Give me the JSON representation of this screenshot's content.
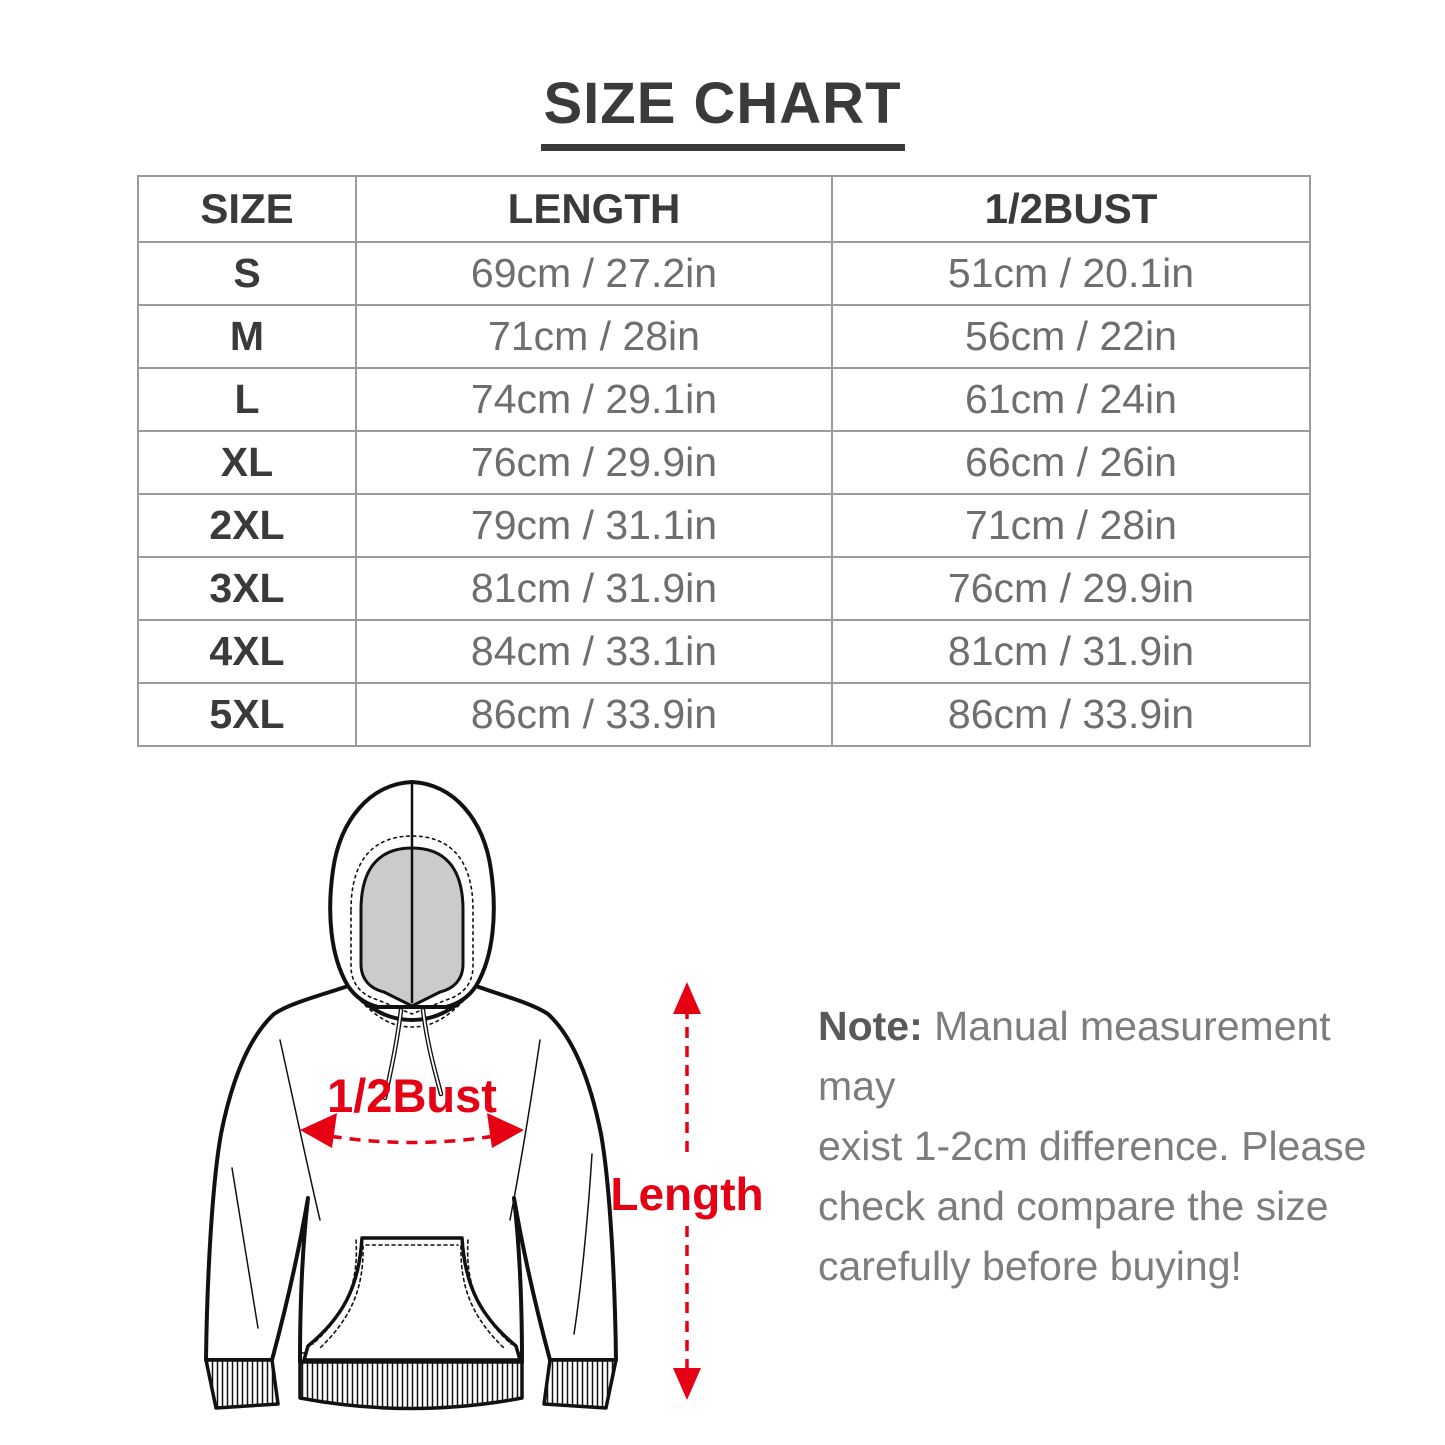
{
  "title": "SIZE CHART",
  "chart_data": {
    "type": "table",
    "title": "SIZE CHART",
    "columns": [
      "SIZE",
      "LENGTH",
      "1/2BUST"
    ],
    "rows": [
      [
        "S",
        "69cm / 27.2in",
        "51cm / 20.1in"
      ],
      [
        "M",
        "71cm / 28in",
        "56cm / 22in"
      ],
      [
        "L",
        "74cm / 29.1in",
        "61cm / 24in"
      ],
      [
        "XL",
        "76cm / 29.9in",
        "66cm / 26in"
      ],
      [
        "2XL",
        "79cm / 31.1in",
        "71cm / 28in"
      ],
      [
        "3XL",
        "81cm / 31.9in",
        "76cm / 29.9in"
      ],
      [
        "4XL",
        "84cm / 33.1in",
        "81cm / 31.9in"
      ],
      [
        "5XL",
        "86cm / 33.9in",
        "86cm / 33.9in"
      ]
    ]
  },
  "diagram": {
    "bust_label": "1/2Bust",
    "length_label": "Length"
  },
  "note": {
    "label": "Note:",
    "line1_rest": " Manual measurement may",
    "line2": "exist 1-2cm difference. Please",
    "line3": "check and compare the size",
    "line4": "carefully before buying!"
  },
  "colors": {
    "accent_red": "#e60014",
    "dark_text": "#3a3a3a",
    "value_text": "#6e6e6e",
    "note_text": "#7d7d7d",
    "table_border": "#9b9b9b",
    "hood_inner_gray": "#cbcbcb"
  }
}
